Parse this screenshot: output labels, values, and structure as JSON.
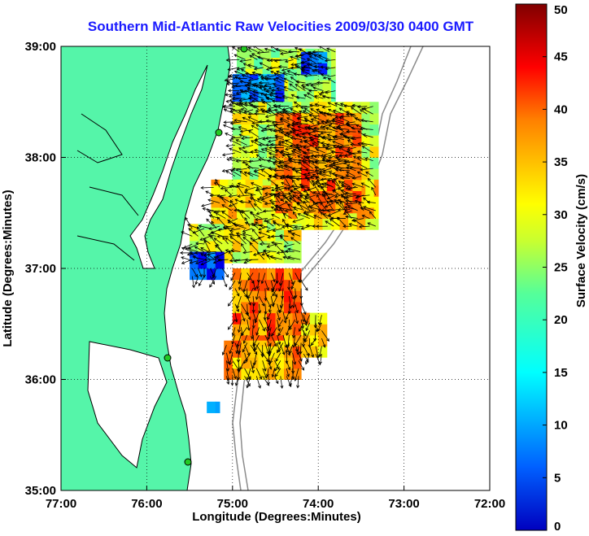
{
  "chart_data": {
    "type": "heatmap",
    "title": "Southern Mid-Atlantic Raw Velocities 2009/03/30 0400 GMT",
    "xlabel": "Longitude (Degrees:Minutes)",
    "ylabel": "Latitude (Degrees:Minutes)",
    "xlim": [
      -77,
      -72
    ],
    "ylim": [
      35,
      39
    ],
    "x_ticks": [
      -77,
      -76,
      -75,
      -74,
      -73,
      -72
    ],
    "x_tick_labels": [
      "77:00",
      "76:00",
      "75:00",
      "74:00",
      "73:00",
      "72:00"
    ],
    "y_ticks": [
      35,
      36,
      37,
      38,
      39
    ],
    "y_tick_labels": [
      "35:00",
      "36:00",
      "37:00",
      "38:00",
      "39:00"
    ],
    "grid": true,
    "colorbar": {
      "label": "Surface Velocity (cm/s)",
      "range": [
        0,
        50
      ],
      "ticks": [
        0,
        5,
        10,
        15,
        20,
        25,
        30,
        35,
        40,
        45,
        50
      ],
      "tick_labels": [
        "0",
        "5",
        "10",
        "15",
        "20",
        "25",
        "30",
        "35",
        "40",
        "45",
        "50"
      ],
      "colormap": "jet"
    },
    "cell_size_deg": 0.1,
    "coverage_boxes": [
      {
        "lon": [
          -74.95,
          -73.8
        ],
        "lat": [
          38.5,
          38.98
        ],
        "value": 27
      },
      {
        "lon": [
          -75.0,
          -74.4
        ],
        "lat": [
          38.4,
          38.75
        ],
        "value": 12
      },
      {
        "lon": [
          -74.2,
          -73.9
        ],
        "lat": [
          38.75,
          38.95
        ],
        "value": 10
      },
      {
        "lon": [
          -75.0,
          -73.3
        ],
        "lat": [
          37.8,
          38.5
        ],
        "value": 29
      },
      {
        "lon": [
          -75.25,
          -73.3
        ],
        "lat": [
          37.35,
          37.8
        ],
        "value": 33
      },
      {
        "lon": [
          -74.5,
          -73.5
        ],
        "lat": [
          37.5,
          38.4
        ],
        "value": 38
      },
      {
        "lon": [
          -75.5,
          -74.2
        ],
        "lat": [
          37.05,
          37.4
        ],
        "value": 30
      },
      {
        "lon": [
          -75.5,
          -75.1
        ],
        "lat": [
          36.9,
          37.15
        ],
        "value": 10
      },
      {
        "lon": [
          -75.0,
          -74.2
        ],
        "lat": [
          36.3,
          37.0
        ],
        "value": 38
      },
      {
        "lon": [
          -75.1,
          -74.2
        ],
        "lat": [
          36.0,
          36.35
        ],
        "value": 36
      },
      {
        "lon": [
          -74.2,
          -73.9
        ],
        "lat": [
          36.2,
          36.6
        ],
        "value": 34
      },
      {
        "lon": [
          -75.3,
          -75.15
        ],
        "lat": [
          35.7,
          35.8
        ],
        "value": 12
      }
    ]
  },
  "colors": {
    "title": "#1a1aff",
    "land": "#55f5a9",
    "coast": "#000000",
    "bathymetry": "#8c8c8c",
    "station": "#22c922",
    "grid": "#000000"
  }
}
